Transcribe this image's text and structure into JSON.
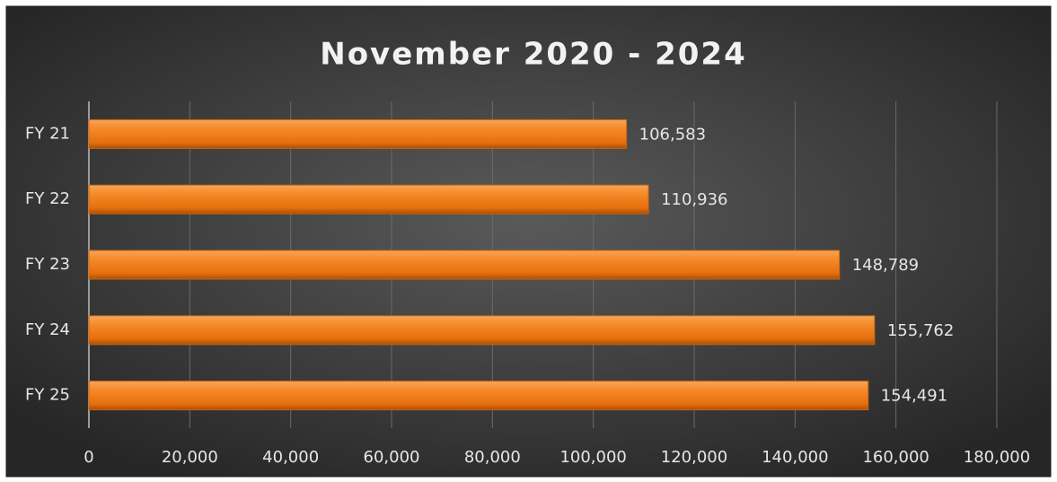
{
  "chart_data": {
    "type": "bar",
    "orientation": "horizontal",
    "title": "November 2020 - 2024",
    "categories": [
      "FY 21",
      "FY 22",
      "FY 23",
      "FY 24",
      "FY 25"
    ],
    "values": [
      106583,
      110936,
      148789,
      155762,
      154491
    ],
    "value_labels": [
      "106,583",
      "110,936",
      "148,789",
      "155,762",
      "154,491"
    ],
    "color": "#f07d1a",
    "xlim": [
      0,
      180000
    ],
    "xticks": [
      0,
      {
        "value": 20000,
        "label": "20,000"
      },
      {
        "value": 40000,
        "label": "40,000"
      },
      {
        "value": 60000,
        "label": "60,000"
      },
      {
        "value": 80000,
        "label": "80,000"
      },
      {
        "value": 100000,
        "label": "100,000"
      },
      {
        "value": 120000,
        "label": "120,000"
      },
      {
        "value": 140000,
        "label": "140,000"
      },
      {
        "value": 160000,
        "label": "160,000"
      },
      {
        "value": 180000,
        "label": "180,000"
      }
    ],
    "grid": true
  }
}
